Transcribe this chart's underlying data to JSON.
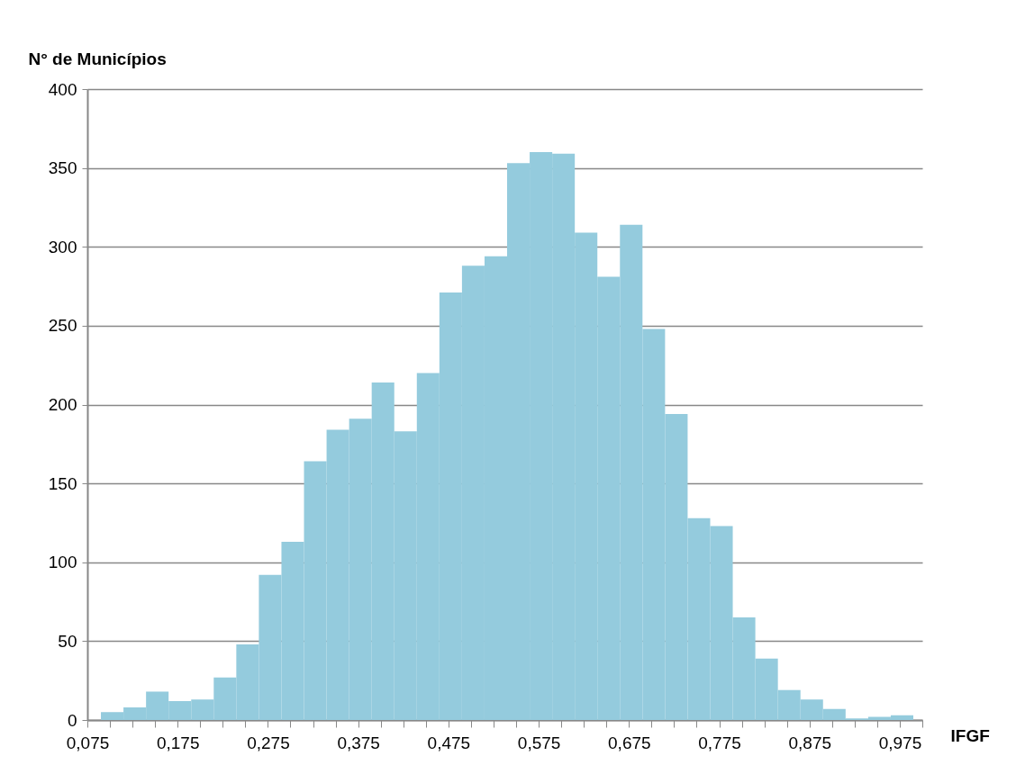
{
  "chart_data": {
    "type": "histogram",
    "xlabel": "IFGF",
    "ylabel": "N° de Municípios",
    "bins": [
      0.09,
      0.115,
      0.14,
      0.165,
      0.19,
      0.215,
      0.24,
      0.265,
      0.29,
      0.315,
      0.34,
      0.365,
      0.39,
      0.415,
      0.44,
      0.465,
      0.49,
      0.515,
      0.54,
      0.565,
      0.59,
      0.615,
      0.64,
      0.665,
      0.69,
      0.715,
      0.74,
      0.765,
      0.79,
      0.815,
      0.84,
      0.865,
      0.89,
      0.915,
      0.94,
      0.965,
      0.99
    ],
    "values": [
      5,
      8,
      18,
      12,
      13,
      27,
      48,
      92,
      113,
      164,
      184,
      191,
      214,
      183,
      220,
      271,
      288,
      294,
      353,
      360,
      359,
      309,
      281,
      314,
      248,
      194,
      128,
      123,
      65,
      39,
      19,
      13,
      7,
      1,
      2,
      3
    ],
    "color": "#94cbdd",
    "xlim": [
      0.075,
      1.0
    ],
    "xticks": [
      {
        "value": 0.075,
        "label": "0,075"
      },
      {
        "value": 0.1,
        "label": null
      },
      {
        "value": 0.125,
        "label": null
      },
      {
        "value": 0.15,
        "label": null
      },
      {
        "value": 0.175,
        "label": "0,175"
      },
      {
        "value": 0.2,
        "label": null
      },
      {
        "value": 0.225,
        "label": null
      },
      {
        "value": 0.25,
        "label": null
      },
      {
        "value": 0.275,
        "label": "0,275"
      },
      {
        "value": 0.3,
        "label": null
      },
      {
        "value": 0.325,
        "label": null
      },
      {
        "value": 0.35,
        "label": null
      },
      {
        "value": 0.375,
        "label": "0,375"
      },
      {
        "value": 0.4,
        "label": null
      },
      {
        "value": 0.425,
        "label": null
      },
      {
        "value": 0.45,
        "label": null
      },
      {
        "value": 0.475,
        "label": "0,475"
      },
      {
        "value": 0.5,
        "label": null
      },
      {
        "value": 0.525,
        "label": null
      },
      {
        "value": 0.55,
        "label": null
      },
      {
        "value": 0.575,
        "label": "0,575"
      },
      {
        "value": 0.6,
        "label": null
      },
      {
        "value": 0.625,
        "label": null
      },
      {
        "value": 0.65,
        "label": null
      },
      {
        "value": 0.675,
        "label": "0,675"
      },
      {
        "value": 0.7,
        "label": null
      },
      {
        "value": 0.725,
        "label": null
      },
      {
        "value": 0.75,
        "label": null
      },
      {
        "value": 0.775,
        "label": "0,775"
      },
      {
        "value": 0.8,
        "label": null
      },
      {
        "value": 0.825,
        "label": null
      },
      {
        "value": 0.85,
        "label": null
      },
      {
        "value": 0.875,
        "label": "0,875"
      },
      {
        "value": 0.9,
        "label": null
      },
      {
        "value": 0.925,
        "label": null
      },
      {
        "value": 0.95,
        "label": null
      },
      {
        "value": 0.975,
        "label": "0,975"
      },
      {
        "value": 1.0,
        "label": null
      }
    ],
    "ylim": [
      0,
      400
    ],
    "yticks": [
      0,
      50,
      100,
      150,
      200,
      250,
      300,
      350,
      400
    ],
    "grid": "y"
  }
}
